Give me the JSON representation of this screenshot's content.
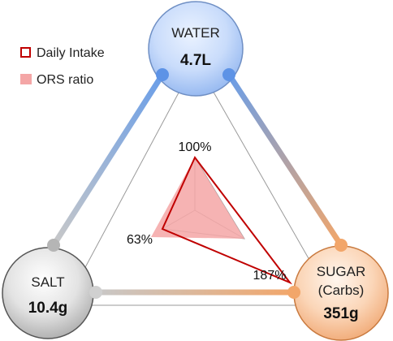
{
  "legend": {
    "daily_intake_label": "Daily Intake",
    "ors_ratio_label": "ORS ratio"
  },
  "nodes": {
    "water": {
      "label": "WATER",
      "value": "4.7L"
    },
    "salt": {
      "label": "SALT",
      "value": "10.4g"
    },
    "sugar": {
      "label_line1": "SUGAR",
      "label_line2": "(Carbs)",
      "value": "351g"
    }
  },
  "percentages": {
    "water": "100%",
    "salt": "63%",
    "sugar": "187%"
  },
  "chart_data": {
    "type": "radar",
    "axes": [
      "WATER",
      "SALT",
      "SUGAR (Carbs)"
    ],
    "series": [
      {
        "name": "Daily Intake",
        "values": [
          100,
          63,
          187
        ]
      },
      {
        "name": "ORS ratio",
        "values": [
          100,
          100,
          100
        ]
      }
    ]
  },
  "colors": {
    "daily_intake_stroke": "#c00000",
    "ors_fill": "#f4a6a6",
    "water_connector": "#6a9ee8",
    "salt_connector": "#c8c8c8",
    "sugar_connector": "#f2a66a"
  }
}
